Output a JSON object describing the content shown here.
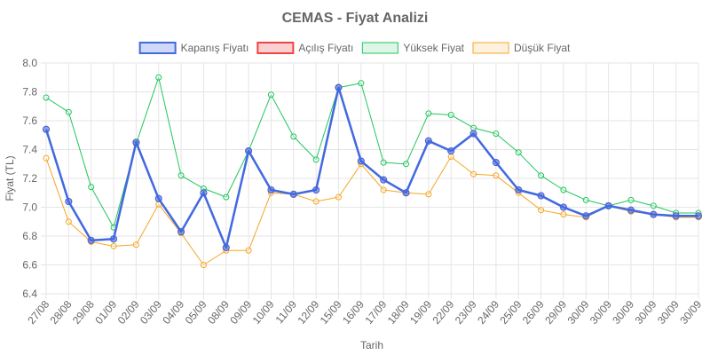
{
  "chart_data": {
    "type": "line",
    "title": "CEMAS - Fiyat Analizi",
    "xlabel": "Tarih",
    "ylabel": "Fiyat (TL)",
    "ylim": [
      6.4,
      8.0
    ],
    "yticks": [
      "6.4",
      "6.6",
      "6.8",
      "7.0",
      "7.2",
      "7.4",
      "7.6",
      "7.8",
      "8.0"
    ],
    "grid": true,
    "legend_position": "top-center",
    "categories": [
      "27/08",
      "28/08",
      "29/08",
      "01/09",
      "02/09",
      "03/09",
      "04/09",
      "05/09",
      "08/09",
      "09/09",
      "10/09",
      "11/09",
      "12/09",
      "15/09",
      "16/09",
      "17/09",
      "18/09",
      "19/09",
      "22/09",
      "23/09",
      "24/09",
      "25/09",
      "26/09",
      "29/09",
      "30/09",
      "30/09",
      "30/09",
      "30/09",
      "30/09",
      "30/09"
    ],
    "series": [
      {
        "name": "Kapanış Fiyatı",
        "color": "#4169e1",
        "values": [
          7.54,
          7.04,
          6.77,
          6.78,
          7.45,
          7.06,
          6.83,
          7.1,
          6.72,
          7.39,
          7.12,
          7.09,
          7.12,
          7.83,
          7.32,
          7.19,
          7.1,
          7.46,
          7.39,
          7.51,
          7.31,
          7.12,
          7.08,
          7.0,
          6.94,
          7.01,
          6.98,
          6.95,
          6.94,
          6.94
        ]
      },
      {
        "name": "Açılış Fiyatı",
        "color": "#ef4444",
        "values": [
          7.54,
          7.04,
          6.77,
          6.78,
          7.45,
          7.06,
          6.83,
          7.1,
          6.72,
          7.39,
          7.12,
          7.09,
          7.12,
          7.83,
          7.32,
          7.19,
          7.1,
          7.46,
          7.39,
          7.51,
          7.31,
          7.12,
          7.08,
          7.0,
          6.94,
          7.01,
          6.98,
          6.95,
          6.94,
          6.94
        ]
      },
      {
        "name": "Yüksek Fiyat",
        "color": "#22c55e",
        "values": [
          7.76,
          7.66,
          7.14,
          6.86,
          7.44,
          7.9,
          7.22,
          7.13,
          7.07,
          7.39,
          7.78,
          7.49,
          7.33,
          7.83,
          7.86,
          7.31,
          7.3,
          7.65,
          7.64,
          7.55,
          7.51,
          7.38,
          7.22,
          7.12,
          7.05,
          7.01,
          7.05,
          7.01,
          6.96,
          6.96
        ]
      },
      {
        "name": "Düşük Fiyat",
        "color": "#f5a623",
        "values": [
          7.34,
          6.9,
          6.76,
          6.73,
          6.74,
          7.02,
          6.82,
          6.6,
          6.7,
          6.7,
          7.1,
          7.09,
          7.04,
          7.07,
          7.3,
          7.12,
          7.1,
          7.09,
          7.35,
          7.23,
          7.22,
          7.1,
          6.98,
          6.95,
          6.93,
          7.01,
          6.97,
          6.95,
          6.93,
          6.93
        ]
      }
    ]
  }
}
